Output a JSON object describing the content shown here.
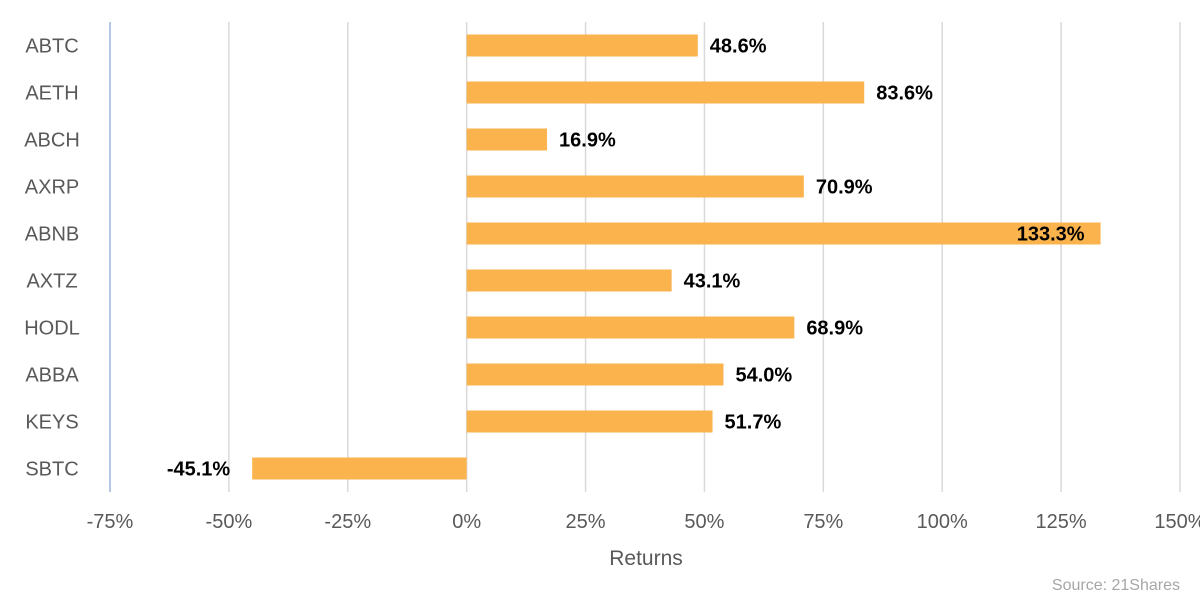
{
  "chart_data": {
    "type": "bar",
    "orientation": "horizontal",
    "categories": [
      "ABTC",
      "AETH",
      "ABCH",
      "AXRP",
      "ABNB",
      "AXTZ",
      "HODL",
      "ABBA",
      "KEYS",
      "SBTC"
    ],
    "values": [
      48.6,
      83.6,
      16.9,
      70.9,
      133.3,
      43.1,
      68.9,
      54.0,
      51.7,
      -45.1
    ],
    "data_labels": [
      "48.6%",
      "83.6%",
      "16.9%",
      "70.9%",
      "133.3%",
      "43.1%",
      "68.9%",
      "54.0%",
      "51.7%",
      "-45.1%"
    ],
    "xlim": [
      -75,
      150
    ],
    "xticks": [
      -75,
      -50,
      -25,
      0,
      25,
      50,
      75,
      100,
      125,
      150
    ],
    "xtick_labels": [
      "-75%",
      "-50%",
      "-25%",
      "0%",
      "25%",
      "50%",
      "75%",
      "100%",
      "125%",
      "150%"
    ],
    "xlabel": "Returns",
    "ylabel": "",
    "title": "",
    "grid": "vertical",
    "legend": "none",
    "bar_color": "#FBB34D",
    "grid_color": "#d9d9d9",
    "axis_color": "#b4c7e7"
  },
  "footer": {
    "source": "Source: 21Shares"
  }
}
